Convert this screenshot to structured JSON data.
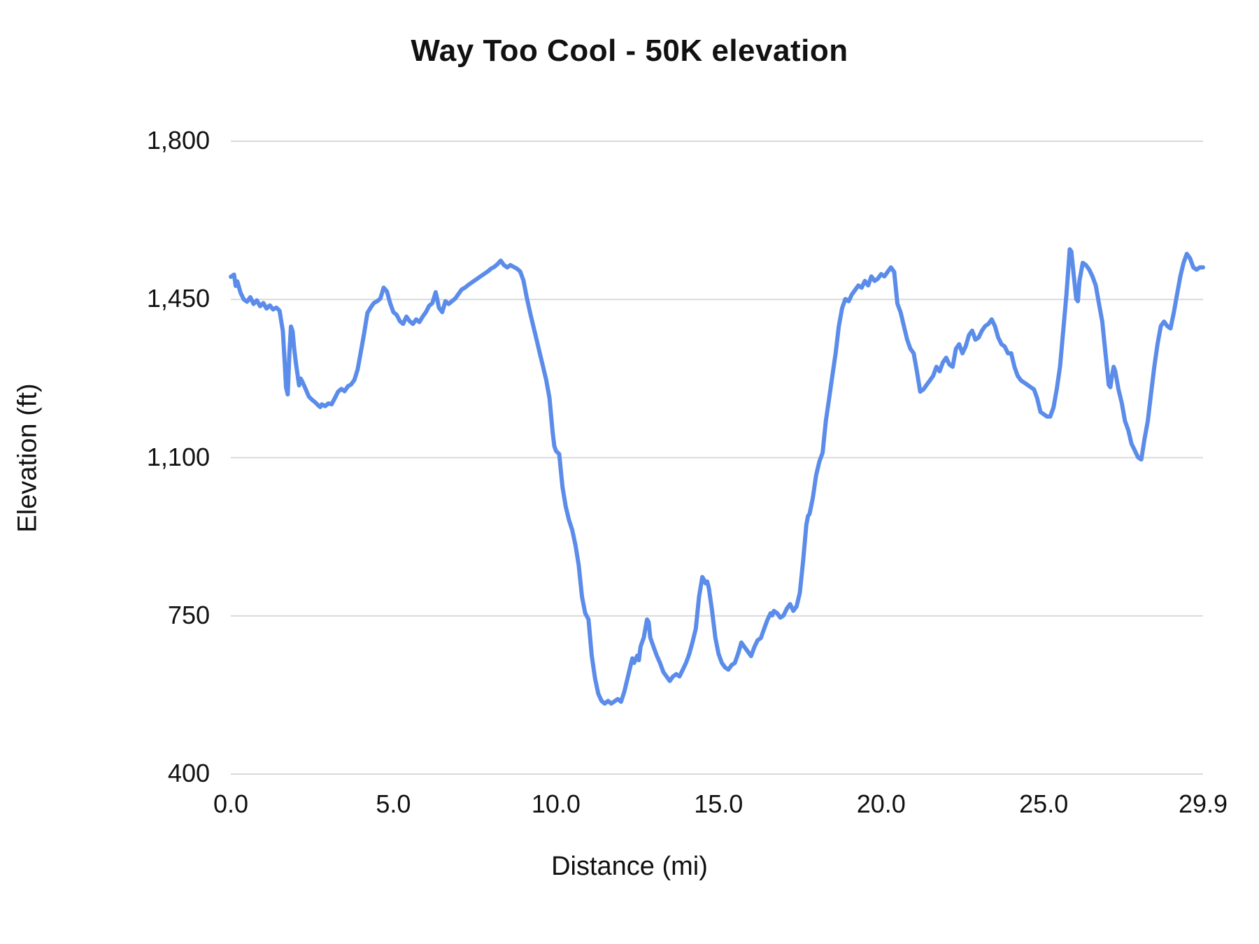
{
  "chart_data": {
    "type": "line",
    "title": "Way Too Cool - 50K elevation",
    "xlabel": "Distance (mi)",
    "ylabel": "Elevation (ft)",
    "xlim": [
      0,
      29.9
    ],
    "ylim": [
      400,
      1800
    ],
    "grid": "horizontal-only",
    "legend": "none",
    "line_color": "#5b8cea",
    "grid_color": "#d9d9d9",
    "text_color": "#111111",
    "xticks": {
      "values": [
        0,
        5,
        10,
        15,
        20,
        25,
        29.9
      ],
      "labels": [
        "0.0",
        "5.0",
        "10.0",
        "15.0",
        "20.0",
        "25.0",
        "29.9"
      ]
    },
    "yticks": {
      "values": [
        400,
        750,
        1100,
        1450,
        1800
      ],
      "labels": [
        "400",
        "750",
        "1,100",
        "1,450",
        "1,800"
      ]
    },
    "series_name": "elevation",
    "points": [
      [
        0.0,
        1500
      ],
      [
        0.1,
        1505
      ],
      [
        0.15,
        1480
      ],
      [
        0.2,
        1490
      ],
      [
        0.3,
        1465
      ],
      [
        0.4,
        1450
      ],
      [
        0.5,
        1445
      ],
      [
        0.6,
        1455
      ],
      [
        0.7,
        1440
      ],
      [
        0.8,
        1448
      ],
      [
        0.9,
        1435
      ],
      [
        1.0,
        1442
      ],
      [
        1.1,
        1430
      ],
      [
        1.2,
        1437
      ],
      [
        1.3,
        1428
      ],
      [
        1.4,
        1432
      ],
      [
        1.5,
        1425
      ],
      [
        1.6,
        1380
      ],
      [
        1.65,
        1320
      ],
      [
        1.7,
        1255
      ],
      [
        1.75,
        1240
      ],
      [
        1.8,
        1330
      ],
      [
        1.85,
        1390
      ],
      [
        1.9,
        1380
      ],
      [
        1.95,
        1340
      ],
      [
        2.0,
        1310
      ],
      [
        2.1,
        1260
      ],
      [
        2.15,
        1275
      ],
      [
        2.2,
        1268
      ],
      [
        2.3,
        1252
      ],
      [
        2.4,
        1235
      ],
      [
        2.5,
        1228
      ],
      [
        2.6,
        1222
      ],
      [
        2.7,
        1215
      ],
      [
        2.75,
        1212
      ],
      [
        2.8,
        1218
      ],
      [
        2.9,
        1214
      ],
      [
        3.0,
        1220
      ],
      [
        3.1,
        1218
      ],
      [
        3.2,
        1232
      ],
      [
        3.3,
        1246
      ],
      [
        3.4,
        1252
      ],
      [
        3.5,
        1247
      ],
      [
        3.6,
        1258
      ],
      [
        3.7,
        1262
      ],
      [
        3.8,
        1272
      ],
      [
        3.9,
        1295
      ],
      [
        4.0,
        1335
      ],
      [
        4.1,
        1375
      ],
      [
        4.2,
        1420
      ],
      [
        4.3,
        1432
      ],
      [
        4.4,
        1442
      ],
      [
        4.5,
        1446
      ],
      [
        4.6,
        1452
      ],
      [
        4.7,
        1476
      ],
      [
        4.75,
        1472
      ],
      [
        4.8,
        1468
      ],
      [
        4.9,
        1442
      ],
      [
        5.0,
        1422
      ],
      [
        5.1,
        1416
      ],
      [
        5.2,
        1402
      ],
      [
        5.3,
        1396
      ],
      [
        5.4,
        1412
      ],
      [
        5.5,
        1402
      ],
      [
        5.6,
        1396
      ],
      [
        5.7,
        1406
      ],
      [
        5.8,
        1400
      ],
      [
        5.9,
        1412
      ],
      [
        6.0,
        1422
      ],
      [
        6.1,
        1436
      ],
      [
        6.2,
        1442
      ],
      [
        6.3,
        1466
      ],
      [
        6.35,
        1450
      ],
      [
        6.4,
        1432
      ],
      [
        6.5,
        1422
      ],
      [
        6.6,
        1446
      ],
      [
        6.7,
        1440
      ],
      [
        6.8,
        1446
      ],
      [
        6.9,
        1452
      ],
      [
        7.0,
        1462
      ],
      [
        7.1,
        1472
      ],
      [
        7.2,
        1476
      ],
      [
        7.3,
        1482
      ],
      [
        7.5,
        1492
      ],
      [
        7.7,
        1502
      ],
      [
        7.9,
        1512
      ],
      [
        8.0,
        1518
      ],
      [
        8.1,
        1522
      ],
      [
        8.2,
        1528
      ],
      [
        8.3,
        1536
      ],
      [
        8.4,
        1526
      ],
      [
        8.5,
        1521
      ],
      [
        8.6,
        1526
      ],
      [
        8.7,
        1522
      ],
      [
        8.8,
        1518
      ],
      [
        8.9,
        1512
      ],
      [
        9.0,
        1492
      ],
      [
        9.1,
        1455
      ],
      [
        9.2,
        1422
      ],
      [
        9.3,
        1392
      ],
      [
        9.4,
        1362
      ],
      [
        9.5,
        1332
      ],
      [
        9.6,
        1302
      ],
      [
        9.7,
        1272
      ],
      [
        9.8,
        1232
      ],
      [
        9.9,
        1155
      ],
      [
        9.95,
        1125
      ],
      [
        10.0,
        1115
      ],
      [
        10.1,
        1108
      ],
      [
        10.2,
        1035
      ],
      [
        10.3,
        992
      ],
      [
        10.4,
        962
      ],
      [
        10.5,
        940
      ],
      [
        10.6,
        906
      ],
      [
        10.7,
        862
      ],
      [
        10.8,
        792
      ],
      [
        10.9,
        756
      ],
      [
        11.0,
        742
      ],
      [
        11.05,
        702
      ],
      [
        11.1,
        662
      ],
      [
        11.2,
        612
      ],
      [
        11.3,
        578
      ],
      [
        11.4,
        562
      ],
      [
        11.5,
        556
      ],
      [
        11.6,
        562
      ],
      [
        11.7,
        556
      ],
      [
        11.8,
        561
      ],
      [
        11.9,
        566
      ],
      [
        12.0,
        560
      ],
      [
        12.1,
        582
      ],
      [
        12.2,
        612
      ],
      [
        12.3,
        642
      ],
      [
        12.35,
        656
      ],
      [
        12.4,
        646
      ],
      [
        12.5,
        662
      ],
      [
        12.55,
        652
      ],
      [
        12.6,
        682
      ],
      [
        12.7,
        702
      ],
      [
        12.75,
        722
      ],
      [
        12.8,
        742
      ],
      [
        12.85,
        736
      ],
      [
        12.9,
        702
      ],
      [
        13.0,
        682
      ],
      [
        13.1,
        662
      ],
      [
        13.2,
        646
      ],
      [
        13.3,
        626
      ],
      [
        13.4,
        616
      ],
      [
        13.5,
        606
      ],
      [
        13.6,
        616
      ],
      [
        13.7,
        621
      ],
      [
        13.8,
        616
      ],
      [
        13.9,
        631
      ],
      [
        14.0,
        646
      ],
      [
        14.1,
        666
      ],
      [
        14.2,
        692
      ],
      [
        14.3,
        722
      ],
      [
        14.4,
        792
      ],
      [
        14.5,
        836
      ],
      [
        14.55,
        830
      ],
      [
        14.6,
        822
      ],
      [
        14.65,
        826
      ],
      [
        14.7,
        812
      ],
      [
        14.8,
        762
      ],
      [
        14.9,
        702
      ],
      [
        15.0,
        666
      ],
      [
        15.1,
        646
      ],
      [
        15.2,
        636
      ],
      [
        15.3,
        631
      ],
      [
        15.4,
        641
      ],
      [
        15.5,
        646
      ],
      [
        15.6,
        666
      ],
      [
        15.7,
        691
      ],
      [
        15.75,
        686
      ],
      [
        15.8,
        681
      ],
      [
        15.9,
        671
      ],
      [
        16.0,
        661
      ],
      [
        16.1,
        681
      ],
      [
        16.2,
        696
      ],
      [
        16.3,
        701
      ],
      [
        16.4,
        721
      ],
      [
        16.5,
        741
      ],
      [
        16.6,
        756
      ],
      [
        16.65,
        751
      ],
      [
        16.7,
        761
      ],
      [
        16.8,
        756
      ],
      [
        16.9,
        746
      ],
      [
        17.0,
        751
      ],
      [
        17.1,
        766
      ],
      [
        17.2,
        776
      ],
      [
        17.3,
        761
      ],
      [
        17.4,
        771
      ],
      [
        17.5,
        801
      ],
      [
        17.6,
        871
      ],
      [
        17.7,
        951
      ],
      [
        17.75,
        971
      ],
      [
        17.8,
        976
      ],
      [
        17.9,
        1011
      ],
      [
        18.0,
        1061
      ],
      [
        18.1,
        1091
      ],
      [
        18.2,
        1111
      ],
      [
        18.3,
        1181
      ],
      [
        18.4,
        1231
      ],
      [
        18.5,
        1281
      ],
      [
        18.6,
        1331
      ],
      [
        18.7,
        1391
      ],
      [
        18.8,
        1431
      ],
      [
        18.9,
        1451
      ],
      [
        19.0,
        1446
      ],
      [
        19.1,
        1461
      ],
      [
        19.2,
        1471
      ],
      [
        19.3,
        1481
      ],
      [
        19.4,
        1476
      ],
      [
        19.5,
        1491
      ],
      [
        19.6,
        1481
      ],
      [
        19.7,
        1501
      ],
      [
        19.8,
        1491
      ],
      [
        19.9,
        1496
      ],
      [
        20.0,
        1506
      ],
      [
        20.1,
        1501
      ],
      [
        20.2,
        1511
      ],
      [
        20.3,
        1521
      ],
      [
        20.4,
        1511
      ],
      [
        20.5,
        1441
      ],
      [
        20.6,
        1421
      ],
      [
        20.7,
        1391
      ],
      [
        20.8,
        1361
      ],
      [
        20.9,
        1341
      ],
      [
        21.0,
        1331
      ],
      [
        21.1,
        1291
      ],
      [
        21.2,
        1246
      ],
      [
        21.3,
        1251
      ],
      [
        21.4,
        1261
      ],
      [
        21.5,
        1271
      ],
      [
        21.6,
        1281
      ],
      [
        21.7,
        1301
      ],
      [
        21.8,
        1291
      ],
      [
        21.9,
        1311
      ],
      [
        22.0,
        1321
      ],
      [
        22.1,
        1306
      ],
      [
        22.2,
        1301
      ],
      [
        22.3,
        1341
      ],
      [
        22.4,
        1351
      ],
      [
        22.5,
        1331
      ],
      [
        22.6,
        1346
      ],
      [
        22.7,
        1371
      ],
      [
        22.8,
        1381
      ],
      [
        22.9,
        1361
      ],
      [
        23.0,
        1366
      ],
      [
        23.1,
        1381
      ],
      [
        23.2,
        1391
      ],
      [
        23.3,
        1396
      ],
      [
        23.4,
        1406
      ],
      [
        23.5,
        1391
      ],
      [
        23.6,
        1366
      ],
      [
        23.7,
        1351
      ],
      [
        23.8,
        1346
      ],
      [
        23.9,
        1331
      ],
      [
        24.0,
        1331
      ],
      [
        24.1,
        1301
      ],
      [
        24.2,
        1281
      ],
      [
        24.3,
        1271
      ],
      [
        24.4,
        1266
      ],
      [
        24.5,
        1261
      ],
      [
        24.6,
        1256
      ],
      [
        24.7,
        1251
      ],
      [
        24.8,
        1231
      ],
      [
        24.9,
        1201
      ],
      [
        25.0,
        1196
      ],
      [
        25.1,
        1191
      ],
      [
        25.2,
        1191
      ],
      [
        25.3,
        1211
      ],
      [
        25.4,
        1251
      ],
      [
        25.5,
        1301
      ],
      [
        25.6,
        1381
      ],
      [
        25.7,
        1461
      ],
      [
        25.8,
        1561
      ],
      [
        25.85,
        1556
      ],
      [
        25.9,
        1521
      ],
      [
        26.0,
        1451
      ],
      [
        26.05,
        1446
      ],
      [
        26.1,
        1491
      ],
      [
        26.2,
        1531
      ],
      [
        26.3,
        1526
      ],
      [
        26.4,
        1516
      ],
      [
        26.5,
        1501
      ],
      [
        26.6,
        1481
      ],
      [
        26.7,
        1441
      ],
      [
        26.8,
        1401
      ],
      [
        26.9,
        1331
      ],
      [
        27.0,
        1261
      ],
      [
        27.05,
        1256
      ],
      [
        27.1,
        1281
      ],
      [
        27.15,
        1301
      ],
      [
        27.2,
        1291
      ],
      [
        27.3,
        1251
      ],
      [
        27.4,
        1221
      ],
      [
        27.5,
        1181
      ],
      [
        27.6,
        1161
      ],
      [
        27.7,
        1131
      ],
      [
        27.8,
        1116
      ],
      [
        27.9,
        1101
      ],
      [
        28.0,
        1096
      ],
      [
        28.1,
        1141
      ],
      [
        28.2,
        1181
      ],
      [
        28.3,
        1241
      ],
      [
        28.4,
        1301
      ],
      [
        28.5,
        1351
      ],
      [
        28.6,
        1391
      ],
      [
        28.7,
        1401
      ],
      [
        28.8,
        1391
      ],
      [
        28.9,
        1386
      ],
      [
        29.0,
        1421
      ],
      [
        29.1,
        1461
      ],
      [
        29.2,
        1501
      ],
      [
        29.3,
        1531
      ],
      [
        29.4,
        1551
      ],
      [
        29.5,
        1541
      ],
      [
        29.6,
        1521
      ],
      [
        29.7,
        1516
      ],
      [
        29.8,
        1521
      ],
      [
        29.9,
        1521
      ]
    ]
  }
}
